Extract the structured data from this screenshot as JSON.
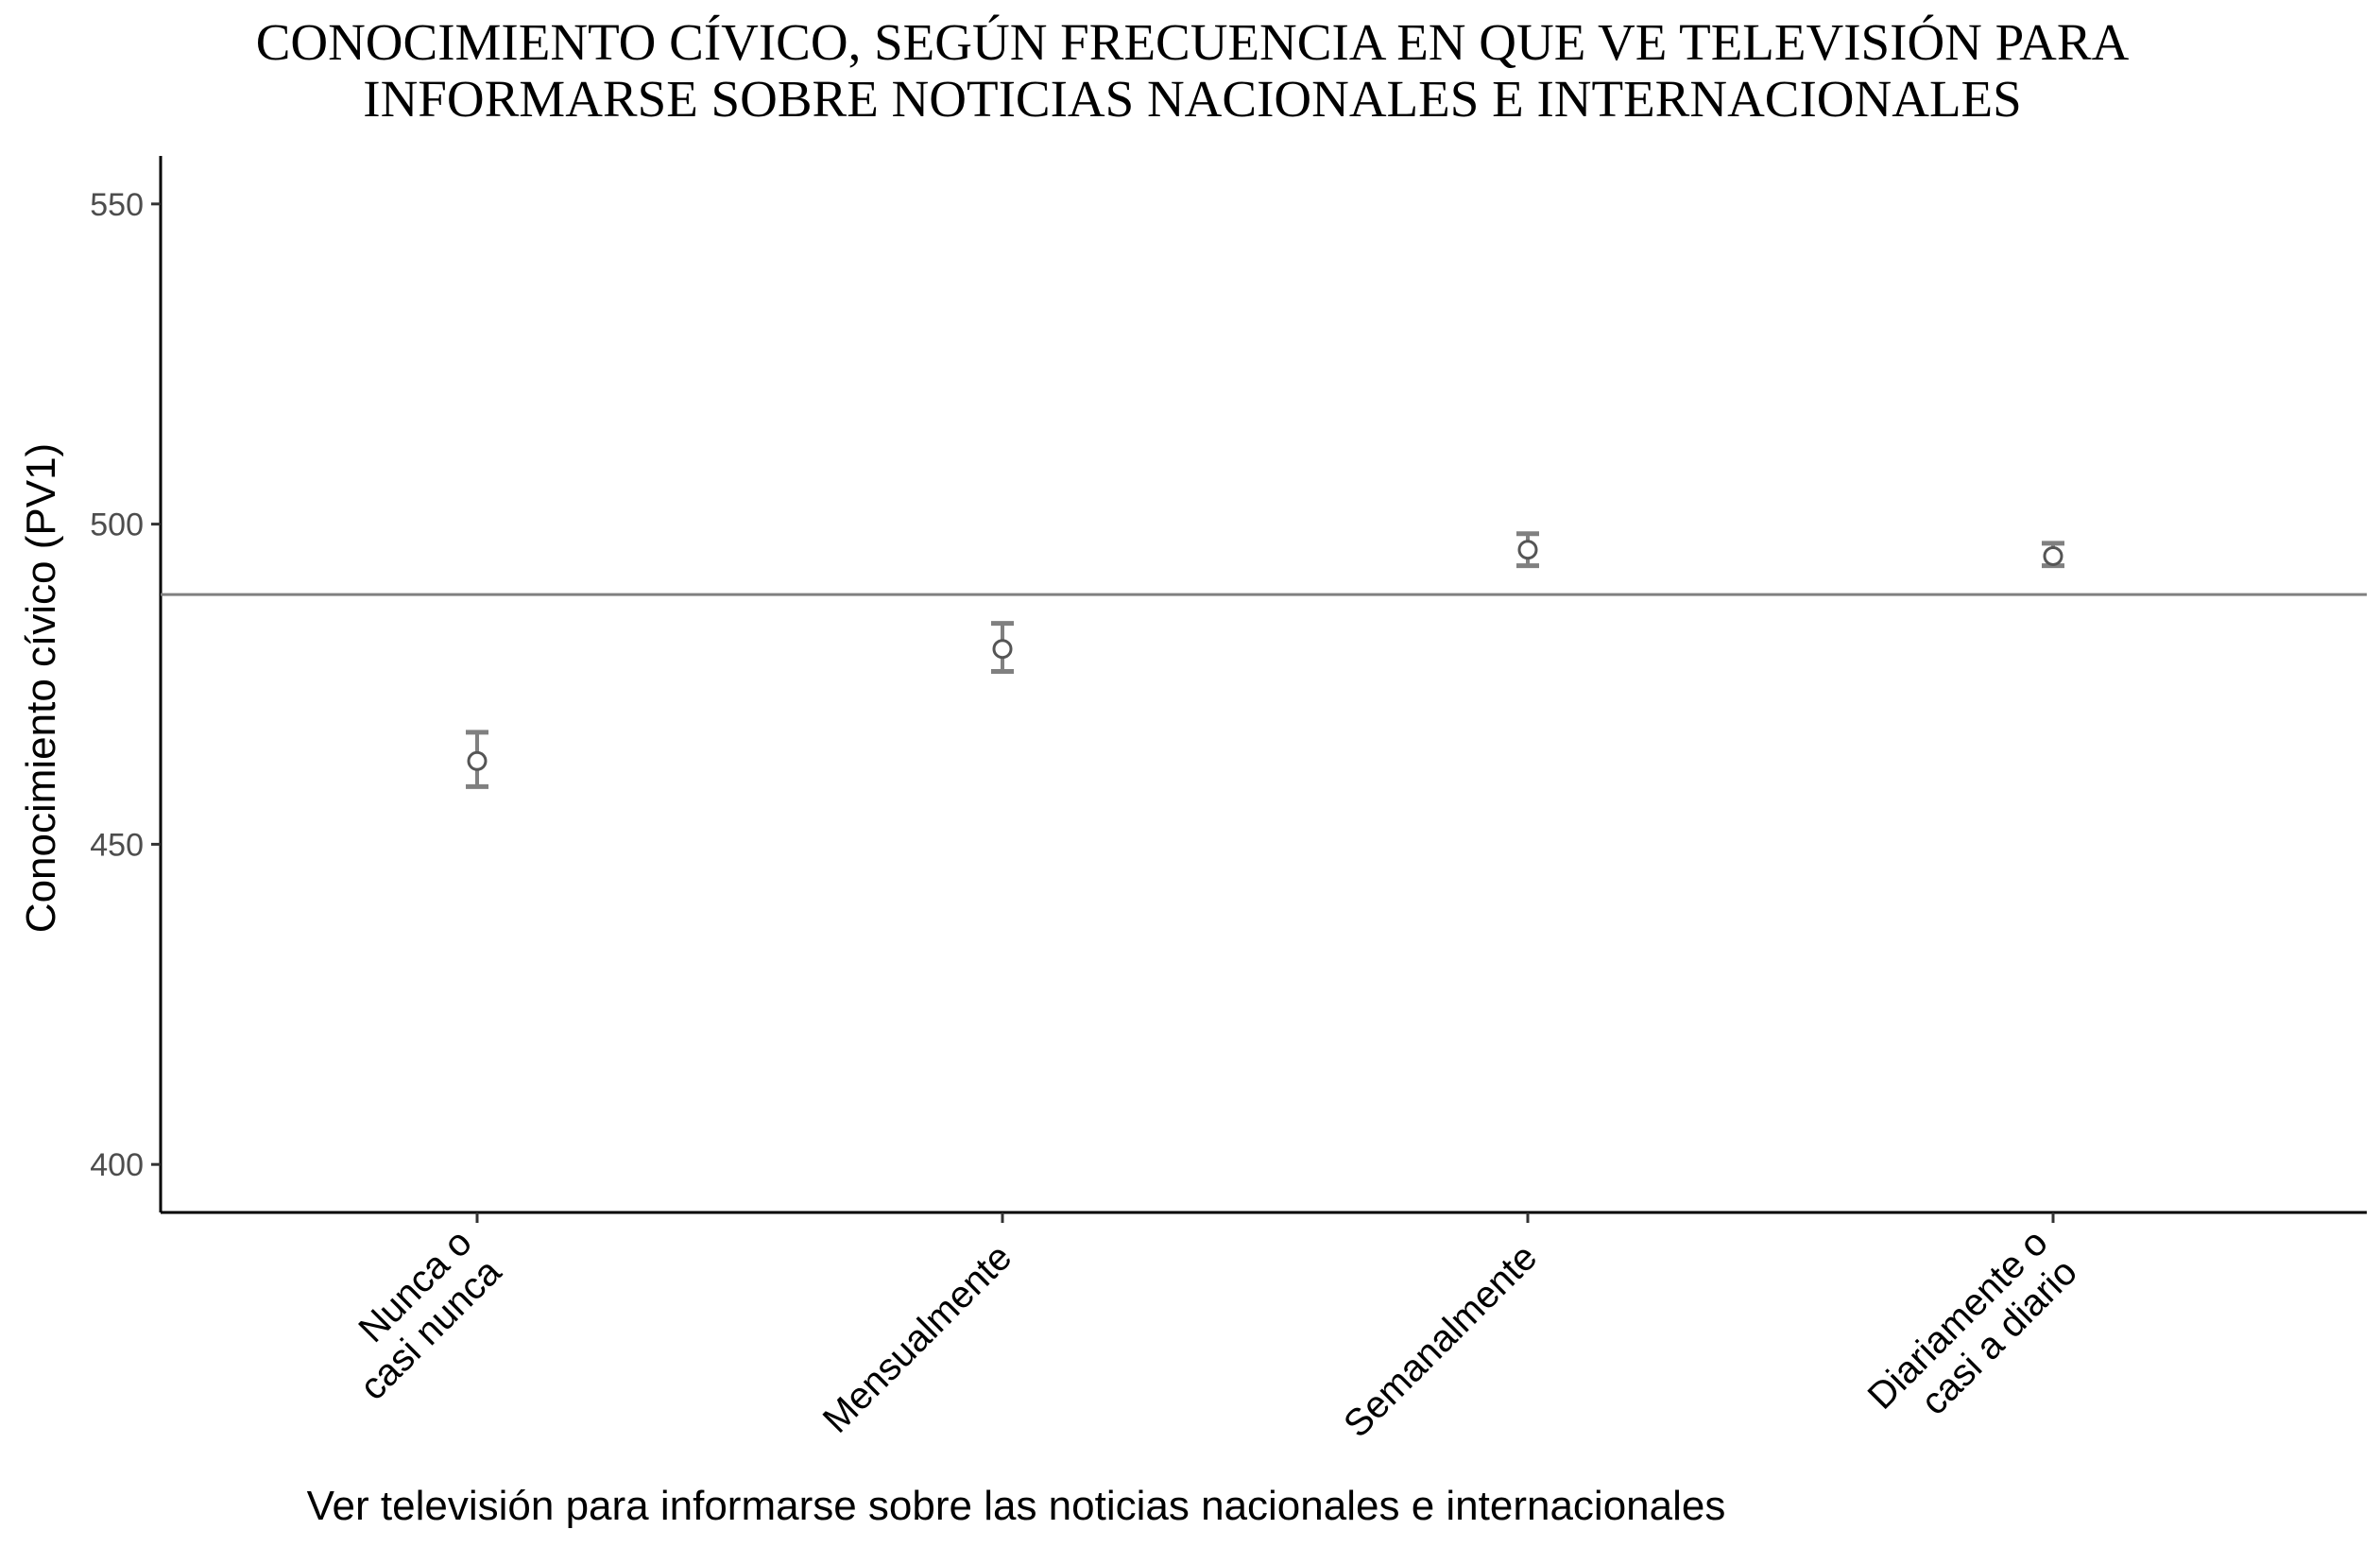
{
  "chart_data": {
    "type": "scatter",
    "title_lines": [
      "CONOCIMIENTO CÍVICO, SEGÚN FRECUENCIA EN QUE VE TELEVISIÓN PARA",
      "INFORMARSE SOBRE NOTICIAS NACIONALES E INTERNACIONALES"
    ],
    "xlabel": "Ver televisión para informarse sobre las noticias nacionales e internacionales",
    "ylabel": "Conocimiento cívico (PV1)",
    "ylim": [
      392.5,
      557.5
    ],
    "yticks": [
      400,
      450,
      500,
      550
    ],
    "ytick_labels": [
      "400",
      "450",
      "500",
      "550"
    ],
    "categories": [
      [
        "Nunca o",
        "casi nunca"
      ],
      [
        "Mensualmente"
      ],
      [
        "Semanalmente"
      ],
      [
        "Diariamente o",
        "casi a diario"
      ]
    ],
    "points": [
      {
        "y": 463,
        "low": 459,
        "high": 467.5
      },
      {
        "y": 480.5,
        "low": 477,
        "high": 484.5
      },
      {
        "y": 496,
        "low": 493.5,
        "high": 498.5
      },
      {
        "y": 495,
        "low": 493.5,
        "high": 497
      }
    ],
    "reference_line": 489,
    "colors": {
      "marker": "#808080",
      "reference_line": "#808080",
      "axis": "#000000"
    },
    "grid": false
  }
}
